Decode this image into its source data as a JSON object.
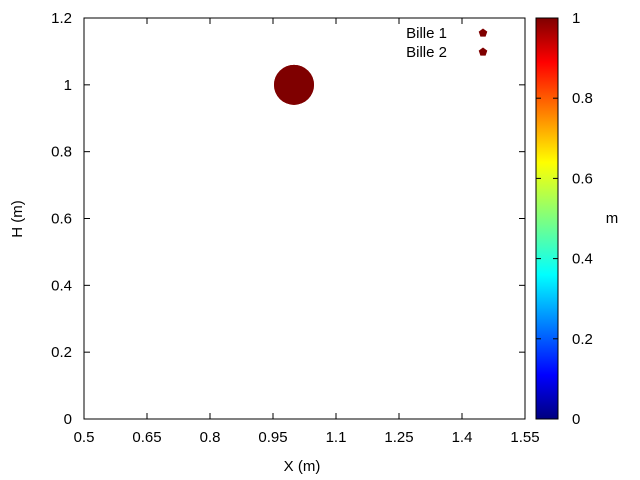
{
  "chart_data": {
    "type": "scatter",
    "xlabel": "X (m)",
    "ylabel": "H (m)",
    "xlim": [
      0.5,
      1.55
    ],
    "ylim": [
      0,
      1.2
    ],
    "xticks": [
      0.5,
      0.65,
      0.8,
      0.95,
      1.1,
      1.25,
      1.4,
      1.55
    ],
    "xtick_labels": [
      "0.5",
      "0.65",
      "0.8",
      "0.95",
      "1.1",
      "1.25",
      "1.4",
      "1.55"
    ],
    "yticks": [
      0,
      0.2,
      0.4,
      0.6,
      0.8,
      1,
      1.2
    ],
    "ytick_labels": [
      "0",
      "0.2",
      "0.4",
      "0.6",
      "0.8",
      "1",
      "1.2"
    ],
    "legend_position": "top-right",
    "colorbar": {
      "label": "m",
      "range": [
        0,
        1
      ],
      "ticks": [
        0,
        0.2,
        0.4,
        0.6,
        0.8,
        1
      ],
      "tick_labels": [
        "0",
        "0.2",
        "0.4",
        "0.6",
        "0.8",
        "1"
      ],
      "colormap": "jet"
    },
    "series": [
      {
        "name": "Bille 1",
        "color": "#7f0000",
        "points": [
          {
            "x": 1.0,
            "y": 1.0,
            "m": 1
          }
        ]
      },
      {
        "name": "Bille 2",
        "color": "#7f0000",
        "points": [
          {
            "x": 1.0,
            "y": 1.0,
            "m": 1
          }
        ]
      }
    ]
  }
}
